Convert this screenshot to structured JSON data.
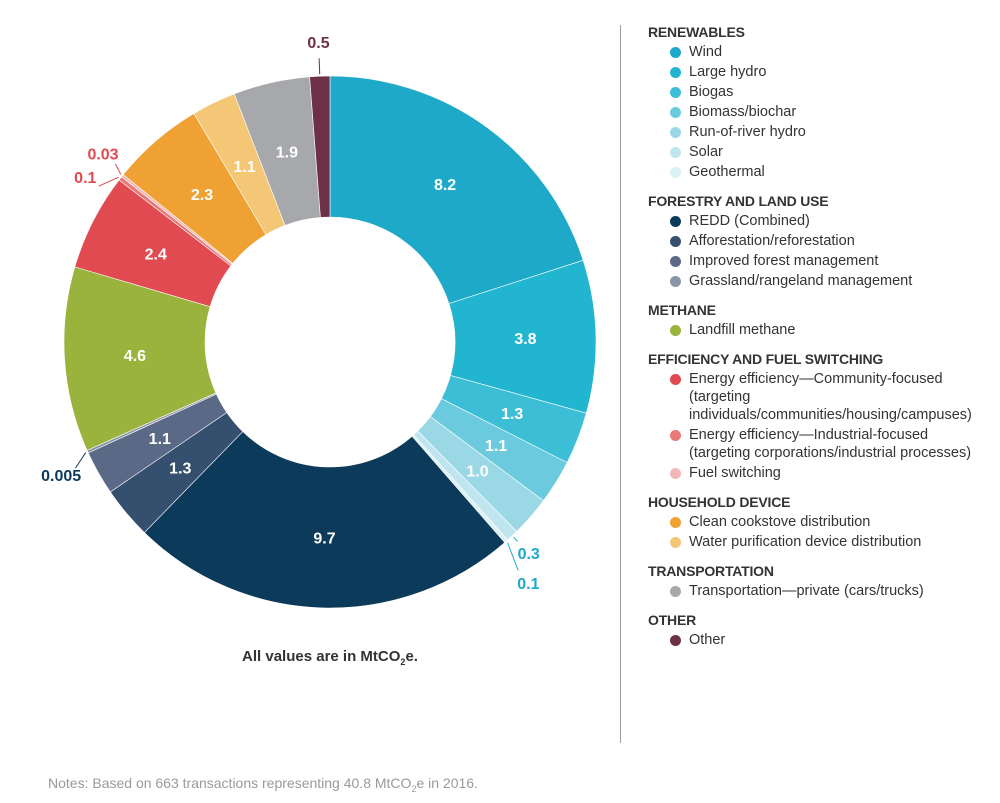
{
  "chart_data": {
    "type": "pie",
    "units_note": {
      "prefix": "All values are in MtCO",
      "sub": "2",
      "suffix": "e."
    },
    "slices": [
      {
        "category": "Wind",
        "value": 8.2,
        "label": "8.2",
        "color": "#1fa9c9"
      },
      {
        "category": "Large hydro",
        "value": 3.8,
        "label": "3.8",
        "color": "#22b5d0"
      },
      {
        "category": "Biogas",
        "value": 1.3,
        "label": "1.3",
        "color": "#3cbfd6"
      },
      {
        "category": "Biomass/biochar",
        "value": 1.1,
        "label": "1.1",
        "color": "#6ccade"
      },
      {
        "category": "Run-of-river hydro",
        "value": 1.0,
        "label": "1.0",
        "color": "#9ad8e6"
      },
      {
        "category": "Solar",
        "value": 0.3,
        "label": "0.3",
        "color": "#bfe6ef"
      },
      {
        "category": "Geothermal",
        "value": 0.1,
        "label": "0.1",
        "color": "#dcf1f6"
      },
      {
        "category": "REDD (Combined)",
        "value": 9.7,
        "label": "9.7",
        "color": "#0c3a5a"
      },
      {
        "category": "Afforestation/reforestation",
        "value": 1.3,
        "label": "1.3",
        "color": "#34506e"
      },
      {
        "category": "Improved forest management",
        "value": 1.1,
        "label": "1.1",
        "color": "#5a6a86"
      },
      {
        "category": "Grassland/rangeland management",
        "value": 0.005,
        "label": "0.005",
        "color": "#8a94a8"
      },
      {
        "category": "Landfill methane",
        "value": 4.6,
        "label": "4.6",
        "color": "#9ab33c"
      },
      {
        "category": "Energy efficiency—Community-focused",
        "value": 2.4,
        "label": "2.4",
        "color": "#e04a50"
      },
      {
        "category": "Energy efficiency—Industrial-focused",
        "value": 0.1,
        "label": "0.1",
        "color": "#e77a76"
      },
      {
        "category": "Fuel switching",
        "value": 0.03,
        "label": "0.03",
        "color": "#f2b8b6"
      },
      {
        "category": "Clean cookstove distribution",
        "value": 2.3,
        "label": "2.3",
        "color": "#efa134"
      },
      {
        "category": "Water purification device distribution",
        "value": 1.1,
        "label": "1.1",
        "color": "#f4c777"
      },
      {
        "category": "Transportation—private (cars/trucks)",
        "value": 1.9,
        "label": "1.9",
        "color": "#a6a8ac"
      },
      {
        "category": "Other",
        "value": 0.5,
        "label": "0.5",
        "color": "#6c3047"
      }
    ]
  },
  "legend": [
    {
      "heading": "RENEWABLES",
      "items": [
        {
          "label": "Wind",
          "color": "#1fa9c9"
        },
        {
          "label": "Large hydro",
          "color": "#22b5d0"
        },
        {
          "label": "Biogas",
          "color": "#3cbfd6"
        },
        {
          "label": "Biomass/biochar",
          "color": "#6ccade"
        },
        {
          "label": "Run-of-river hydro",
          "color": "#9ad8e6"
        },
        {
          "label": "Solar",
          "color": "#bfe6ef"
        },
        {
          "label": "Geothermal",
          "color": "#dcf1f6"
        }
      ]
    },
    {
      "heading": "FORESTRY AND LAND USE",
      "items": [
        {
          "label": "REDD (Combined)",
          "color": "#0c3a5a"
        },
        {
          "label": "Afforestation/reforestation",
          "color": "#34506e"
        },
        {
          "label": "Improved forest management",
          "color": "#5a6a86"
        },
        {
          "label": "Grassland/rangeland management",
          "color": "#8a94a8"
        }
      ]
    },
    {
      "heading": "METHANE",
      "items": [
        {
          "label": "Landfill methane",
          "color": "#9ab33c"
        }
      ]
    },
    {
      "heading": "EFFICIENCY AND FUEL SWITCHING",
      "items": [
        {
          "label": "Energy efficiency—Community-focused (targeting individuals/communities/housing/campuses)",
          "color": "#e04a50"
        },
        {
          "label": "Energy efficiency—Industrial-focused (targeting corporations/industrial processes)",
          "color": "#e77a76"
        },
        {
          "label": "Fuel switching",
          "color": "#f2b8b6"
        }
      ]
    },
    {
      "heading": "HOUSEHOLD DEVICE",
      "items": [
        {
          "label": "Clean cookstove distribution",
          "color": "#efa134"
        },
        {
          "label": "Water purification device distribution",
          "color": "#f4c777"
        }
      ]
    },
    {
      "heading": "TRANSPORTATION",
      "items": [
        {
          "label": "Transportation—private (cars/trucks)",
          "color": "#a6a8ac"
        }
      ]
    },
    {
      "heading": "OTHER",
      "items": [
        {
          "label": "Other",
          "color": "#6c3047"
        }
      ]
    }
  ],
  "footnote": {
    "prefix": "Notes: Based on 663 transactions representing 40.8 MtCO",
    "sub": "2",
    "suffix": "e in 2016."
  }
}
